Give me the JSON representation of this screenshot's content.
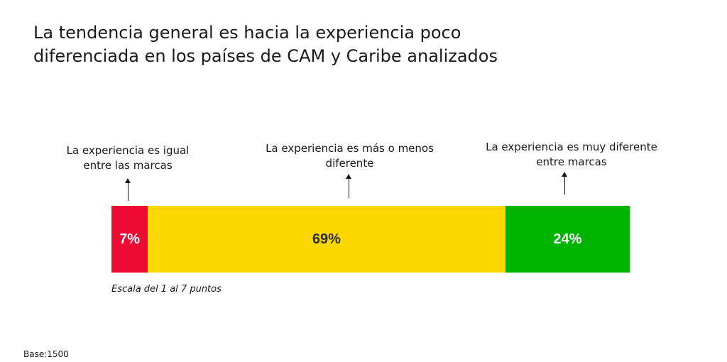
{
  "title": {
    "line1": "La tendencia general es hacia la experiencia poco",
    "line2": "diferenciada en los países de CAM  y Caribe analizados"
  },
  "annotations": [
    {
      "line1": "La experiencia es igual",
      "line2": "entre las marcas"
    },
    {
      "line1": "La experiencia es más o menos",
      "line2": "diferente"
    },
    {
      "line1": "La experiencia es muy diferente",
      "line2": "entre marcas"
    }
  ],
  "note": "Escala del 1 al 7 puntos",
  "base": "Base:1500",
  "chart_data": {
    "type": "bar",
    "orientation": "horizontal-stacked",
    "title": "La tendencia general es hacia la experiencia poco diferenciada en los países de CAM  y Caribe analizados",
    "categories": [
      "La experiencia es igual entre las marcas",
      "La experiencia es más o menos diferente",
      "La experiencia es muy diferente entre marcas"
    ],
    "values": [
      7,
      69,
      24
    ],
    "labels": [
      "7%",
      "69%",
      "24%"
    ],
    "colors": [
      "#ee0a33",
      "#fcd800",
      "#00b300"
    ],
    "label_colors": [
      "#ffffff",
      "#2b2b2b",
      "#ffffff"
    ],
    "xlim": [
      0,
      100
    ],
    "grid": false,
    "legend": "none"
  }
}
